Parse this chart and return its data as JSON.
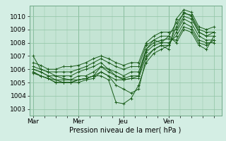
{
  "title": "",
  "xlabel": "Pression niveau de la mer( hPa )",
  "ylabel": "",
  "bg_color": "#d4eee4",
  "plot_bg_color": "#c4e4d4",
  "line_color": "#1a5c1a",
  "marker_color": "#1a5c1a",
  "grid_color": "#90c4a4",
  "ylim": [
    1002.5,
    1010.8
  ],
  "xlim": [
    -2,
    100
  ],
  "yticks": [
    1003,
    1004,
    1005,
    1006,
    1007,
    1008,
    1009,
    1010
  ],
  "xtick_positions": [
    0,
    24,
    48,
    72,
    96
  ],
  "xtick_labels": [
    "Mar",
    "Mer",
    "Jeu",
    "Ven",
    ""
  ],
  "series": [
    [
      0,
      1007.0,
      4,
      1006.0,
      8,
      1005.8,
      12,
      1005.5,
      16,
      1005.3,
      20,
      1005.2,
      24,
      1005.2,
      28,
      1005.3,
      32,
      1005.5,
      36,
      1006.2,
      40,
      1006.0,
      44,
      1005.5,
      48,
      1005.2,
      52,
      1005.3,
      56,
      1005.5,
      60,
      1007.5,
      64,
      1008.2,
      68,
      1008.0,
      72,
      1008.5,
      76,
      1009.5,
      80,
      1010.2,
      84,
      1010.1,
      88,
      1009.0,
      92,
      1008.8,
      96,
      1008.8
    ],
    [
      0,
      1006.0,
      4,
      1005.8,
      8,
      1005.5,
      12,
      1005.2,
      16,
      1005.0,
      20,
      1005.0,
      24,
      1005.0,
      28,
      1005.2,
      32,
      1005.3,
      36,
      1005.8,
      40,
      1005.5,
      44,
      1004.8,
      48,
      1004.5,
      52,
      1004.2,
      56,
      1004.5,
      60,
      1006.8,
      64,
      1007.5,
      68,
      1007.8,
      72,
      1007.5,
      76,
      1009.8,
      80,
      1010.5,
      84,
      1010.3,
      88,
      1009.2,
      92,
      1009.0,
      96,
      1009.2
    ],
    [
      0,
      1005.8,
      4,
      1005.5,
      8,
      1005.3,
      12,
      1005.0,
      16,
      1005.0,
      20,
      1005.0,
      24,
      1005.2,
      28,
      1005.3,
      32,
      1005.5,
      36,
      1005.5,
      40,
      1005.2,
      44,
      1003.5,
      48,
      1003.4,
      52,
      1003.8,
      56,
      1004.8,
      60,
      1006.5,
      64,
      1007.2,
      68,
      1007.5,
      72,
      1007.8,
      76,
      1009.2,
      80,
      1010.3,
      84,
      1010.0,
      88,
      1008.8,
      92,
      1008.5,
      96,
      1008.5
    ],
    [
      0,
      1005.7,
      4,
      1005.5,
      8,
      1005.3,
      12,
      1005.0,
      16,
      1005.0,
      20,
      1005.0,
      24,
      1005.2,
      28,
      1005.3,
      32,
      1005.5,
      36,
      1005.8,
      40,
      1005.5,
      44,
      1005.2,
      48,
      1005.2,
      52,
      1005.3,
      56,
      1005.3,
      60,
      1007.0,
      64,
      1007.5,
      68,
      1007.8,
      72,
      1007.8,
      76,
      1008.8,
      80,
      1009.8,
      84,
      1009.5,
      88,
      1008.5,
      92,
      1008.2,
      96,
      1008.2
    ],
    [
      0,
      1005.8,
      4,
      1005.5,
      8,
      1005.3,
      12,
      1005.2,
      16,
      1005.2,
      20,
      1005.2,
      24,
      1005.5,
      28,
      1005.5,
      32,
      1005.8,
      36,
      1006.2,
      40,
      1005.8,
      44,
      1005.5,
      48,
      1005.3,
      52,
      1005.5,
      56,
      1005.5,
      60,
      1007.3,
      64,
      1007.8,
      68,
      1008.0,
      72,
      1008.0,
      76,
      1008.5,
      80,
      1009.5,
      84,
      1009.2,
      88,
      1008.2,
      92,
      1008.0,
      96,
      1008.0
    ],
    [
      0,
      1006.0,
      4,
      1005.8,
      8,
      1005.5,
      12,
      1005.5,
      16,
      1005.5,
      20,
      1005.5,
      24,
      1005.8,
      28,
      1006.0,
      32,
      1006.2,
      36,
      1006.5,
      40,
      1006.0,
      44,
      1005.8,
      48,
      1005.5,
      52,
      1005.8,
      56,
      1005.8,
      60,
      1007.5,
      64,
      1008.0,
      68,
      1008.2,
      72,
      1008.3,
      76,
      1008.2,
      80,
      1009.2,
      84,
      1009.0,
      88,
      1008.0,
      92,
      1007.8,
      96,
      1008.2
    ],
    [
      0,
      1006.2,
      4,
      1006.0,
      8,
      1005.8,
      12,
      1005.8,
      16,
      1005.8,
      20,
      1005.8,
      24,
      1006.0,
      28,
      1006.2,
      32,
      1006.5,
      36,
      1006.8,
      40,
      1006.5,
      44,
      1006.2,
      48,
      1006.0,
      52,
      1006.2,
      56,
      1006.2,
      60,
      1007.8,
      64,
      1008.2,
      68,
      1008.5,
      72,
      1008.5,
      76,
      1008.0,
      80,
      1009.0,
      84,
      1008.8,
      88,
      1007.8,
      92,
      1007.5,
      96,
      1008.5
    ],
    [
      0,
      1006.5,
      4,
      1006.3,
      8,
      1006.0,
      12,
      1006.0,
      16,
      1006.2,
      20,
      1006.2,
      24,
      1006.3,
      28,
      1006.5,
      32,
      1006.8,
      36,
      1007.0,
      40,
      1006.8,
      44,
      1006.5,
      48,
      1006.3,
      52,
      1006.5,
      56,
      1006.5,
      60,
      1008.0,
      64,
      1008.5,
      68,
      1008.8,
      72,
      1008.8,
      76,
      1009.0,
      80,
      1010.0,
      84,
      1009.8,
      88,
      1008.8,
      92,
      1008.5,
      96,
      1008.8
    ]
  ]
}
